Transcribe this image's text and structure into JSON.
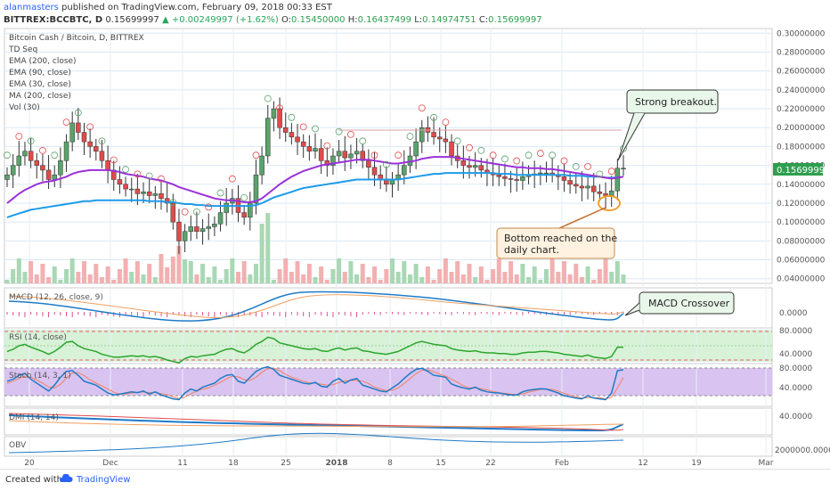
{
  "header": {
    "publisher": "alanmasters",
    "published_text": "published on TradingView.com, February 09, 2018 00:33 EST",
    "symbol": "BITTREX:BCCBTC, D",
    "last": "0.15699997",
    "change": "▲ +0.00249997 (+1.62%)",
    "o_label": "O:",
    "o": "0.15450000",
    "h_label": "H:",
    "h": "0.16437499",
    "l_label": "L:",
    "l": "0.14974751",
    "c_label": "C:",
    "c": "0.15699997"
  },
  "legend": {
    "title": "Bitcoin Cash / Bitcoin, D, BITTREX",
    "items": [
      "TD Seq",
      "EMA (200, close)",
      "EMA (90, close)",
      "EMA (30, close)",
      "MA (200, close)",
      "Vol (30)"
    ]
  },
  "annotations": {
    "breakout": "Strong breakout.",
    "bottom_line1": "Bottom reached on the",
    "bottom_line2": "daily chart.",
    "macd": "MACD Crossover"
  },
  "pane_labels": {
    "macd": "MACD (12, 26, close, 9)",
    "rsi": "RSI (14, close)",
    "stoch": "Stoch (14, 3, 1)",
    "dmi": "DMI (14, 14)",
    "obv": "OBV"
  },
  "colors": {
    "up": "#5aa36a",
    "down": "#e04b4b",
    "ema30": "#9b30d9",
    "ema90": "#1e9be9",
    "rsi": "#2aa62a",
    "stoch_bg": "#d9c3f0",
    "rsi_bg": "#d8f2d8",
    "price_tag": "#2e9e4f"
  },
  "footer": {
    "made": "Created with",
    "brand": "TradingView"
  },
  "chart_data": [
    {
      "type": "candlestick",
      "series_name": "BCCBTC",
      "price_axis_ticks": [
        "0.30000000",
        "0.28000000",
        "0.26000000",
        "0.24000000",
        "0.22000000",
        "0.20000000",
        "0.18000000",
        "0.16000000",
        "0.14000000",
        "0.12000000",
        "0.10000000",
        "0.08000000",
        "0.06000000",
        "0.04000000"
      ],
      "ylim": [
        0.035,
        0.305
      ],
      "x_ticks": [
        "20",
        "Dec",
        "11",
        "18",
        "25",
        "2018",
        "8",
        "15",
        "22",
        "Feb",
        "12",
        "19",
        "Mar"
      ],
      "current_price": "0.15699997",
      "closes": [
        0.15,
        0.16,
        0.17,
        0.175,
        0.165,
        0.16,
        0.155,
        0.145,
        0.15,
        0.165,
        0.185,
        0.205,
        0.195,
        0.185,
        0.18,
        0.175,
        0.165,
        0.155,
        0.145,
        0.14,
        0.135,
        0.135,
        0.13,
        0.132,
        0.128,
        0.13,
        0.125,
        0.12,
        0.1,
        0.08,
        0.09,
        0.095,
        0.09,
        0.093,
        0.095,
        0.098,
        0.11,
        0.12,
        0.125,
        0.11,
        0.105,
        0.12,
        0.15,
        0.17,
        0.21,
        0.22,
        0.2,
        0.195,
        0.19,
        0.185,
        0.18,
        0.175,
        0.178,
        0.165,
        0.16,
        0.17,
        0.175,
        0.168,
        0.172,
        0.175,
        0.165,
        0.158,
        0.15,
        0.145,
        0.14,
        0.145,
        0.15,
        0.16,
        0.17,
        0.185,
        0.2,
        0.195,
        0.19,
        0.188,
        0.185,
        0.17,
        0.165,
        0.16,
        0.158,
        0.16,
        0.155,
        0.152,
        0.15,
        0.148,
        0.146,
        0.145,
        0.144,
        0.148,
        0.15,
        0.151,
        0.152,
        0.152,
        0.15,
        0.148,
        0.144,
        0.14,
        0.138,
        0.136,
        0.138,
        0.132,
        0.13,
        0.128,
        0.133,
        0.157,
        0.157
      ],
      "ema30": [
        0.12,
        0.125,
        0.13,
        0.134,
        0.137,
        0.14,
        0.142,
        0.143,
        0.144,
        0.146,
        0.148,
        0.151,
        0.153,
        0.154,
        0.155,
        0.155,
        0.155,
        0.155,
        0.154,
        0.153,
        0.151,
        0.15,
        0.149,
        0.148,
        0.146,
        0.145,
        0.144,
        0.142,
        0.14,
        0.137,
        0.135,
        0.133,
        0.131,
        0.129,
        0.127,
        0.125,
        0.124,
        0.123,
        0.123,
        0.122,
        0.121,
        0.121,
        0.122,
        0.125,
        0.13,
        0.135,
        0.14,
        0.144,
        0.148,
        0.151,
        0.154,
        0.156,
        0.158,
        0.16,
        0.161,
        0.162,
        0.163,
        0.164,
        0.165,
        0.166,
        0.166,
        0.166,
        0.165,
        0.164,
        0.163,
        0.162,
        0.162,
        0.163,
        0.164,
        0.165,
        0.167,
        0.168,
        0.169,
        0.169,
        0.169,
        0.169,
        0.168,
        0.167,
        0.166,
        0.165,
        0.164,
        0.163,
        0.162,
        0.161,
        0.16,
        0.159,
        0.158,
        0.158,
        0.157,
        0.157,
        0.157,
        0.156,
        0.156,
        0.155,
        0.154,
        0.153,
        0.152,
        0.151,
        0.15,
        0.149,
        0.148,
        0.147,
        0.146,
        0.147,
        0.148
      ],
      "ema90": [
        0.105,
        0.107,
        0.109,
        0.111,
        0.113,
        0.114,
        0.115,
        0.116,
        0.117,
        0.118,
        0.119,
        0.12,
        0.121,
        0.122,
        0.122,
        0.123,
        0.123,
        0.123,
        0.123,
        0.123,
        0.123,
        0.123,
        0.123,
        0.123,
        0.122,
        0.122,
        0.122,
        0.121,
        0.121,
        0.12,
        0.119,
        0.119,
        0.118,
        0.118,
        0.117,
        0.117,
        0.117,
        0.117,
        0.117,
        0.117,
        0.117,
        0.117,
        0.118,
        0.12,
        0.123,
        0.126,
        0.128,
        0.13,
        0.132,
        0.134,
        0.136,
        0.137,
        0.138,
        0.139,
        0.14,
        0.141,
        0.142,
        0.143,
        0.144,
        0.145,
        0.145,
        0.145,
        0.145,
        0.145,
        0.145,
        0.145,
        0.145,
        0.146,
        0.147,
        0.148,
        0.149,
        0.15,
        0.151,
        0.151,
        0.152,
        0.152,
        0.152,
        0.152,
        0.152,
        0.152,
        0.152,
        0.152,
        0.152,
        0.151,
        0.151,
        0.151,
        0.15,
        0.15,
        0.15,
        0.15,
        0.15,
        0.15,
        0.15,
        0.15,
        0.15,
        0.149,
        0.149,
        0.149,
        0.148,
        0.148,
        0.148,
        0.147,
        0.147,
        0.147,
        0.148
      ]
    },
    {
      "type": "line",
      "name": "MACD",
      "ticks": [
        "0.0000"
      ],
      "histogram_sign": "negative"
    },
    {
      "type": "line",
      "name": "RSI",
      "ticks": [
        "80.0000",
        "40.0000"
      ],
      "values": [
        52,
        55,
        60,
        62,
        58,
        55,
        52,
        48,
        52,
        58,
        65,
        66,
        60,
        56,
        54,
        52,
        48,
        46,
        44,
        44,
        45,
        46,
        45,
        46,
        44,
        45,
        43,
        40,
        38,
        36,
        42,
        45,
        44,
        46,
        47,
        48,
        52,
        55,
        56,
        52,
        50,
        55,
        62,
        66,
        72,
        70,
        64,
        62,
        60,
        58,
        56,
        55,
        56,
        53,
        52,
        55,
        57,
        54,
        56,
        57,
        53,
        52,
        50,
        49,
        48,
        50,
        52,
        56,
        60,
        64,
        66,
        64,
        62,
        61,
        60,
        56,
        54,
        53,
        52,
        53,
        51,
        50,
        50,
        49,
        49,
        48,
        48,
        50,
        51,
        51,
        52,
        52,
        51,
        50,
        48,
        47,
        46,
        45,
        47,
        44,
        43,
        42,
        45,
        58,
        58
      ]
    },
    {
      "type": "line",
      "name": "Stoch",
      "ticks": [
        "80.0000",
        "40.0000"
      ],
      "k": [
        55,
        60,
        70,
        75,
        60,
        50,
        40,
        30,
        45,
        65,
        80,
        82,
        70,
        55,
        50,
        45,
        35,
        25,
        20,
        22,
        25,
        28,
        26,
        30,
        22,
        28,
        20,
        15,
        10,
        8,
        25,
        35,
        30,
        40,
        45,
        50,
        62,
        70,
        72,
        55,
        50,
        65,
        80,
        88,
        92,
        85,
        70,
        65,
        60,
        55,
        50,
        48,
        52,
        42,
        40,
        55,
        62,
        50,
        58,
        62,
        45,
        40,
        35,
        30,
        28,
        38,
        48,
        62,
        75,
        85,
        88,
        80,
        70,
        68,
        65,
        48,
        42,
        38,
        35,
        40,
        32,
        28,
        26,
        25,
        22,
        20,
        20,
        28,
        32,
        34,
        36,
        35,
        30,
        25,
        18,
        15,
        12,
        10,
        18,
        12,
        10,
        8,
        25,
        82,
        84
      ],
      "d": [
        50,
        55,
        62,
        68,
        65,
        58,
        50,
        40,
        38,
        47,
        63,
        76,
        77,
        69,
        58,
        50,
        43,
        35,
        27,
        22,
        22,
        25,
        26,
        28,
        26,
        27,
        23,
        21,
        15,
        11,
        14,
        23,
        30,
        35,
        38,
        45,
        52,
        61,
        68,
        66,
        59,
        57,
        65,
        78,
        87,
        88,
        82,
        73,
        65,
        60,
        55,
        51,
        50,
        47,
        45,
        46,
        52,
        56,
        57,
        57,
        55,
        49,
        40,
        35,
        31,
        32,
        38,
        49,
        62,
        74,
        83,
        84,
        79,
        73,
        68,
        60,
        52,
        43,
        38,
        38,
        36,
        33,
        29,
        26,
        24,
        22,
        21,
        23,
        27,
        31,
        34,
        35,
        34,
        30,
        24,
        19,
        15,
        12,
        13,
        13,
        13,
        10,
        14,
        38,
        64
      ]
    },
    {
      "type": "line",
      "name": "DMI",
      "ticks": [
        "40.0000"
      ]
    },
    {
      "type": "line",
      "name": "OBV",
      "ticks": [
        "2000000.0000"
      ]
    }
  ]
}
